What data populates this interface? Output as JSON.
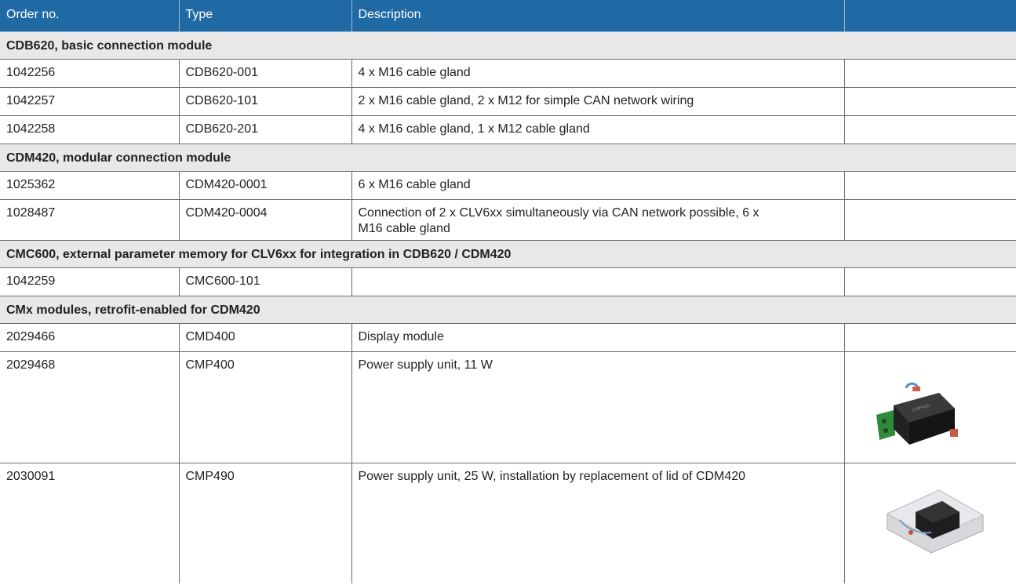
{
  "table": {
    "header": [
      "Order no.",
      "Type",
      "Description"
    ],
    "sections": [
      {
        "title": "CDB620, basic connection module",
        "rows": [
          [
            "1042256",
            "CDB620-001",
            "4 x M16 cable gland"
          ],
          [
            "1042257",
            "CDB620-101",
            "2 x M16 cable gland, 2 x M12 for simple CAN network wiring"
          ],
          [
            "1042258",
            "CDB620-201",
            "4 x M16 cable gland, 1 x M12 cable gland"
          ]
        ]
      },
      {
        "title": "CDM420, modular connection module",
        "rows": [
          [
            "1025362",
            "CDM420-0001",
            "6 x M16 cable gland"
          ],
          [
            "1028487",
            "CDM420-0004",
            "Connection of 2 x CLV6xx simultaneously via CAN network possible, 6 x M16 cable gland"
          ]
        ]
      },
      {
        "title": "CMC600, external parameter memory for CLV6xx for integration in CDB620 / CDM420",
        "rows": [
          [
            "1042259",
            "CMC600-101"
          ]
        ]
      },
      {
        "title": "CMx modules, retrofit-enabled for CDM420",
        "rows": [
          [
            "2029466",
            "CMD400",
            "Display module"
          ],
          [
            "2029468",
            "CMP400",
            "Power supply unit, 11 W"
          ],
          [
            "2030091",
            "CMP490",
            "Power supply unit, 25 W, installation by replacement of lid of CDM420"
          ]
        ]
      }
    ]
  }
}
